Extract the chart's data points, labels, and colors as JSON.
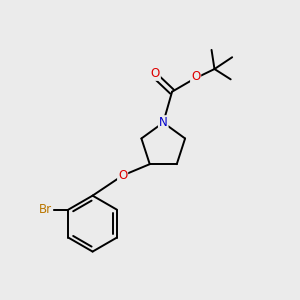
{
  "background_color": "#ebebeb",
  "atom_colors": {
    "C": "#000000",
    "N": "#0000cc",
    "O": "#dd0000",
    "Br": "#bb7700"
  },
  "bond_color": "#000000",
  "bond_width": 1.4,
  "figsize": [
    3.0,
    3.0
  ],
  "dpi": 100,
  "xlim": [
    0,
    10
  ],
  "ylim": [
    0,
    10
  ]
}
